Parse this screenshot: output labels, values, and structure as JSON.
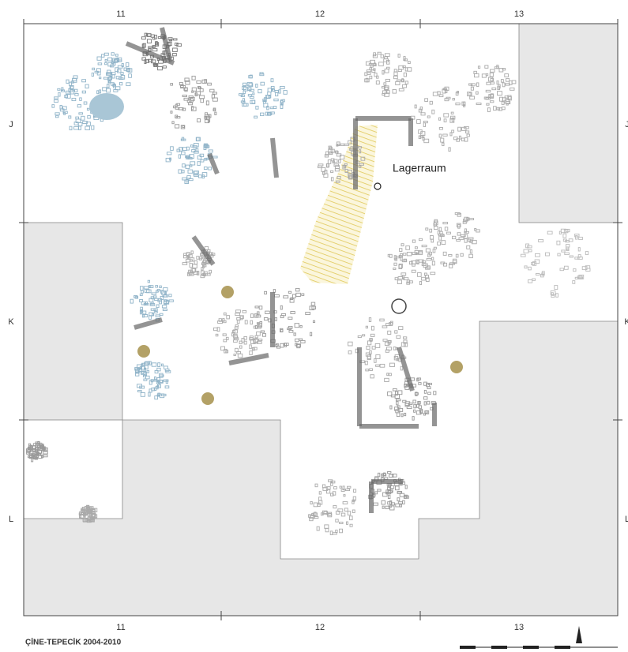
{
  "grid": {
    "columns_top": [
      "11",
      "12",
      "13"
    ],
    "columns_bottom": [
      "11",
      "12",
      "13"
    ],
    "rows_left": [
      "J",
      "K",
      "L"
    ],
    "rows_right": [
      "J",
      "K",
      "L"
    ]
  },
  "labels": {
    "room": "Lagerraum"
  },
  "footer": {
    "title": "ÇİNE-TEPECİK 2004-2010"
  }
}
